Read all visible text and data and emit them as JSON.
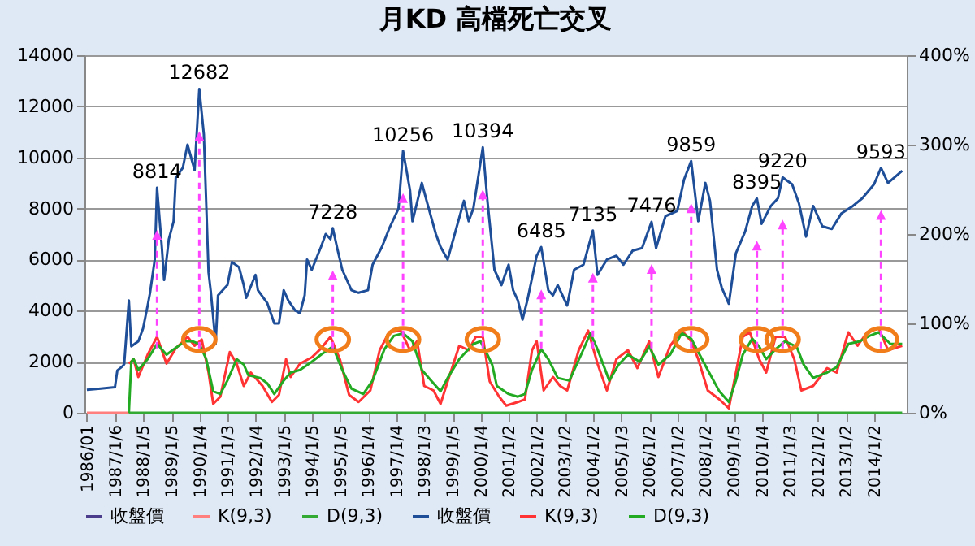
{
  "chart_data": {
    "type": "line",
    "title": "月KD 高檔死亡交叉",
    "xlim": [
      "1985-12",
      "2015-03"
    ],
    "xticks": [
      {
        "value": "1986-01-01",
        "label": "1986/01"
      },
      {
        "value": "1987-01-06",
        "label": "1987/1/6"
      },
      {
        "value": "1988-01-05",
        "label": "1988/1/5"
      },
      {
        "value": "1989-01-05",
        "label": "1989/1/5"
      },
      {
        "value": "1990-01-04",
        "label": "1990/1/4"
      },
      {
        "value": "1991-01-03",
        "label": "1991/1/3"
      },
      {
        "value": "1992-01-04",
        "label": "1992/1/4"
      },
      {
        "value": "1993-01-05",
        "label": "1993/1/5"
      },
      {
        "value": "1994-01-05",
        "label": "1994/1/5"
      },
      {
        "value": "1995-01-05",
        "label": "1995/1/5"
      },
      {
        "value": "1996-01-04",
        "label": "1996/1/4"
      },
      {
        "value": "1997-01-04",
        "label": "1997/1/4"
      },
      {
        "value": "1998-01-03",
        "label": "1998/1/3"
      },
      {
        "value": "1999-01-05",
        "label": "1999/1/5"
      },
      {
        "value": "2000-01-04",
        "label": "2000/1/4"
      },
      {
        "value": "2001-01-02",
        "label": "2001/1/2"
      },
      {
        "value": "2002-01-02",
        "label": "2002/1/2"
      },
      {
        "value": "2003-01-02",
        "label": "2003/1/2"
      },
      {
        "value": "2004-01-02",
        "label": "2004/1/2"
      },
      {
        "value": "2005-01-03",
        "label": "2005/1/3"
      },
      {
        "value": "2006-01-02",
        "label": "2006/1/2"
      },
      {
        "value": "2007-01-02",
        "label": "2007/1/2"
      },
      {
        "value": "2008-01-02",
        "label": "2008/1/2"
      },
      {
        "value": "2009-01-05",
        "label": "2009/1/5"
      },
      {
        "value": "2010-01-04",
        "label": "2010/1/4"
      },
      {
        "value": "2011-01-03",
        "label": "2011/1/3"
      },
      {
        "value": "2012-01-02",
        "label": "2012/1/2"
      },
      {
        "value": "2013-01-02",
        "label": "2013/1/2"
      },
      {
        "value": "2014-01-02",
        "label": "2014/1/2"
      }
    ],
    "ylim": [
      0,
      14000
    ],
    "yticks": [
      0,
      2000,
      4000,
      6000,
      8000,
      10000,
      12000,
      14000
    ],
    "y2lim": [
      0,
      400
    ],
    "y2ticks": [
      {
        "value": 0,
        "label": "0%"
      },
      {
        "value": 100,
        "label": "100%"
      },
      {
        "value": 200,
        "label": "200%"
      },
      {
        "value": 300,
        "label": "300%"
      },
      {
        "value": 400,
        "label": "400%"
      }
    ],
    "grid": "y",
    "legend": "bottom",
    "series": [
      {
        "name": "收盤價",
        "color": "#4b3c8c"
      },
      {
        "name": "K(9,3)",
        "color": "#ff7f7f",
        "axis": "y2",
        "x": [
          "1986-01",
          "1987-07"
        ],
        "values": [
          0,
          0
        ]
      },
      {
        "name": "D(9,3)",
        "color": "#33aa33",
        "axis": "y2",
        "x": [
          "1987-07",
          "2015-01"
        ],
        "values": [
          0,
          0
        ]
      },
      {
        "name": "收盤價",
        "color": "#1f4e99",
        "x": [
          "1986-01",
          "1986-07",
          "1987-01",
          "1987-02",
          "1987-04",
          "1987-05",
          "1987-07",
          "1987-08",
          "1987-11",
          "1988-01",
          "1988-03",
          "1988-04",
          "1988-06",
          "1988-07",
          "1988-09",
          "1988-10",
          "1988-12",
          "1989-02",
          "1989-03",
          "1989-06",
          "1989-08",
          "1989-11",
          "1990-01",
          "1990-03",
          "1990-05",
          "1990-06",
          "1990-08",
          "1990-09",
          "1991-01",
          "1991-03",
          "1991-06",
          "1991-08",
          "1991-09",
          "1992-01",
          "1992-02",
          "1992-06",
          "1992-09",
          "1992-11",
          "1993-01",
          "1993-03",
          "1993-06",
          "1993-08",
          "1993-10",
          "1993-11",
          "1994-01",
          "1994-05",
          "1994-07",
          "1994-09",
          "1994-10",
          "1994-12",
          "1995-02",
          "1995-06",
          "1995-09",
          "1996-01",
          "1996-03",
          "1996-07",
          "1996-10",
          "1997-02",
          "1997-04",
          "1997-07",
          "1997-08",
          "1997-12",
          "1998-02",
          "1998-06",
          "1998-08",
          "1998-11",
          "1999-02",
          "1999-06",
          "1999-08",
          "1999-10",
          "2000-02",
          "2000-04",
          "2000-07",
          "2000-10",
          "2001-01",
          "2001-03",
          "2001-05",
          "2001-07",
          "2001-09",
          "2002-01",
          "2002-03",
          "2002-06",
          "2002-08",
          "2002-10",
          "2003-02",
          "2003-05",
          "2003-09",
          "2004-01",
          "2004-03",
          "2004-07",
          "2004-11",
          "2005-02",
          "2005-06",
          "2005-10",
          "2006-02",
          "2006-04",
          "2006-08",
          "2007-01",
          "2007-04",
          "2007-07",
          "2007-10",
          "2008-01",
          "2008-03",
          "2008-06",
          "2008-08",
          "2008-11",
          "2009-02",
          "2009-06",
          "2009-09",
          "2009-11",
          "2010-01",
          "2010-05",
          "2010-08",
          "2010-10",
          "2011-02",
          "2011-05",
          "2011-08",
          "2011-11",
          "2012-03",
          "2012-07",
          "2012-11",
          "2013-04",
          "2013-08",
          "2014-01",
          "2014-04",
          "2014-07",
          "2015-01"
        ],
        "values": [
          900,
          950,
          1000,
          1660,
          1800,
          1900,
          4400,
          2600,
          2800,
          3300,
          4200,
          4700,
          6000,
          8814,
          6500,
          5200,
          6800,
          7500,
          9200,
          9600,
          10500,
          9500,
          12682,
          10900,
          5500,
          4700,
          2700,
          4600,
          5000,
          5900,
          5700,
          5000,
          4500,
          5400,
          4800,
          4300,
          3500,
          3500,
          4800,
          4400,
          4000,
          3900,
          4600,
          6000,
          5600,
          6500,
          7000,
          6800,
          7228,
          6400,
          5600,
          4800,
          4700,
          4800,
          5800,
          6500,
          7200,
          8000,
          10256,
          8700,
          7500,
          9000,
          8300,
          7000,
          6500,
          6000,
          7000,
          8300,
          7500,
          8000,
          10394,
          8300,
          5600,
          5000,
          5800,
          4800,
          4400,
          3650,
          4400,
          6150,
          6485,
          4800,
          4600,
          5000,
          4200,
          5600,
          5800,
          7135,
          5400,
          6000,
          6150,
          5800,
          6350,
          6450,
          7476,
          6450,
          7700,
          7900,
          9150,
          9859,
          7500,
          9000,
          8300,
          5600,
          4900,
          4270,
          6250,
          7100,
          8100,
          8395,
          7400,
          8100,
          8400,
          9220,
          8950,
          8200,
          6900,
          8100,
          7300,
          7200,
          7800,
          8100,
          8400,
          8950,
          9593,
          9000,
          9480
        ]
      },
      {
        "name": "K(9,3)",
        "color": "#ff3333",
        "axis": "y2",
        "x": [
          "1987-07",
          "1987-09",
          "1987-11",
          "1988-03",
          "1988-07",
          "1988-11",
          "1989-03",
          "1989-08",
          "1989-11",
          "1990-02",
          "1990-05",
          "1990-07",
          "1990-10",
          "1991-02",
          "1991-05",
          "1991-08",
          "1991-11",
          "1992-04",
          "1992-08",
          "1992-11",
          "1993-02",
          "1993-04",
          "1993-08",
          "1994-01",
          "1994-05",
          "1994-09",
          "1995-01",
          "1995-05",
          "1995-09",
          "1996-02",
          "1996-06",
          "1996-10",
          "1997-03",
          "1997-07",
          "1997-10",
          "1998-01",
          "1998-05",
          "1998-08",
          "1998-11",
          "1999-04",
          "1999-08",
          "1999-11",
          "2000-02",
          "2000-05",
          "2000-09",
          "2000-12",
          "2001-05",
          "2001-08",
          "2001-11",
          "2002-01",
          "2002-04",
          "2002-08",
          "2002-11",
          "2003-02",
          "2003-07",
          "2003-11",
          "2004-03",
          "2004-07",
          "2004-11",
          "2005-04",
          "2005-08",
          "2006-01",
          "2006-05",
          "2006-10",
          "2007-03",
          "2007-07",
          "2007-10",
          "2008-02",
          "2008-07",
          "2008-11",
          "2009-02",
          "2009-05",
          "2009-08",
          "2009-12",
          "2010-03",
          "2010-07",
          "2010-11",
          "2011-03",
          "2011-06",
          "2011-11",
          "2012-05",
          "2012-09",
          "2013-02",
          "2013-06",
          "2013-10",
          "2014-03",
          "2014-07",
          "2015-01"
        ],
        "values": [
          55,
          60,
          40,
          65,
          85,
          55,
          72,
          85,
          75,
          82,
          45,
          10,
          18,
          68,
          55,
          30,
          45,
          30,
          12,
          20,
          60,
          40,
          55,
          62,
          72,
          85,
          60,
          20,
          12,
          25,
          70,
          90,
          92,
          70,
          80,
          30,
          25,
          10,
          35,
          75,
          70,
          85,
          85,
          35,
          18,
          8,
          12,
          15,
          70,
          80,
          25,
          40,
          30,
          25,
          70,
          92,
          55,
          25,
          60,
          70,
          50,
          80,
          40,
          75,
          92,
          80,
          60,
          25,
          15,
          5,
          45,
          85,
          90,
          60,
          45,
          85,
          85,
          60,
          25,
          30,
          50,
          45,
          90,
          75,
          90,
          95,
          70,
          75
        ]
      },
      {
        "name": "D(9,3)",
        "color": "#22aa22",
        "axis": "y2",
        "x": [
          "1987-07",
          "1987-08",
          "1987-09",
          "1987-11",
          "1988-03",
          "1988-07",
          "1988-11",
          "1989-02",
          "1989-07",
          "1989-10",
          "1990-01",
          "1990-04",
          "1990-07",
          "1990-10",
          "1991-01",
          "1991-05",
          "1991-08",
          "1991-10",
          "1992-03",
          "1992-06",
          "1992-09",
          "1993-01",
          "1993-04",
          "1993-08",
          "1994-01",
          "1994-05",
          "1994-10",
          "1995-02",
          "1995-06",
          "1995-11",
          "1996-03",
          "1996-08",
          "1996-12",
          "1997-04",
          "1997-08",
          "1997-12",
          "1998-04",
          "1998-08",
          "1998-11",
          "1999-04",
          "1999-10",
          "2000-01",
          "2000-04",
          "2000-06",
          "2000-08",
          "2001-01",
          "2001-05",
          "2001-08",
          "2001-11",
          "2002-03",
          "2002-06",
          "2002-10",
          "2003-03",
          "2003-08",
          "2003-12",
          "2004-03",
          "2004-08",
          "2004-12",
          "2005-04",
          "2005-09",
          "2006-01",
          "2006-05",
          "2006-10",
          "2007-03",
          "2007-07",
          "2007-10",
          "2008-02",
          "2008-07",
          "2008-11",
          "2009-02",
          "2009-05",
          "2009-09",
          "2009-12",
          "2010-03",
          "2010-07",
          "2010-11",
          "2011-04",
          "2011-07",
          "2011-11",
          "2012-05",
          "2012-09",
          "2013-02",
          "2013-07",
          "2013-11",
          "2014-03",
          "2014-08",
          "2015-01"
        ],
        "values": [
          0,
          57,
          60,
          48,
          60,
          77,
          65,
          71,
          80,
          80,
          77,
          60,
          24,
          21,
          36,
          60,
          54,
          42,
          39,
          33,
          21,
          36,
          45,
          48,
          57,
          65,
          74,
          48,
          27,
          21,
          36,
          71,
          86,
          89,
          80,
          48,
          36,
          24,
          39,
          60,
          77,
          80,
          65,
          54,
          30,
          21,
          18,
          21,
          48,
          71,
          60,
          39,
          36,
          65,
          89,
          71,
          36,
          54,
          65,
          57,
          74,
          54,
          65,
          89,
          83,
          68,
          48,
          24,
          12,
          36,
          65,
          83,
          74,
          60,
          71,
          80,
          74,
          54,
          39,
          45,
          51,
          77,
          80,
          86,
          90,
          77,
          77
        ]
      }
    ],
    "annotations": [
      {
        "text": "8814",
        "x": "1988-07",
        "y": 8814
      },
      {
        "text": "12682",
        "x": "1990-01",
        "y": 12682
      },
      {
        "text": "7228",
        "x": "1994-10",
        "y": 7228
      },
      {
        "text": "10256",
        "x": "1997-04",
        "y": 10256
      },
      {
        "text": "10394",
        "x": "2000-02",
        "y": 10394
      },
      {
        "text": "6485",
        "x": "2002-03",
        "y": 6485
      },
      {
        "text": "7135",
        "x": "2004-01",
        "y": 7135
      },
      {
        "text": "7476",
        "x": "2006-02",
        "y": 7476
      },
      {
        "text": "9859",
        "x": "2007-07",
        "y": 9859
      },
      {
        "text": "8395",
        "x": "2009-11",
        "y": 8395
      },
      {
        "text": "9220",
        "x": "2010-10",
        "y": 9220
      },
      {
        "text": "9593",
        "x": "2014-04",
        "y": 9593
      }
    ]
  }
}
